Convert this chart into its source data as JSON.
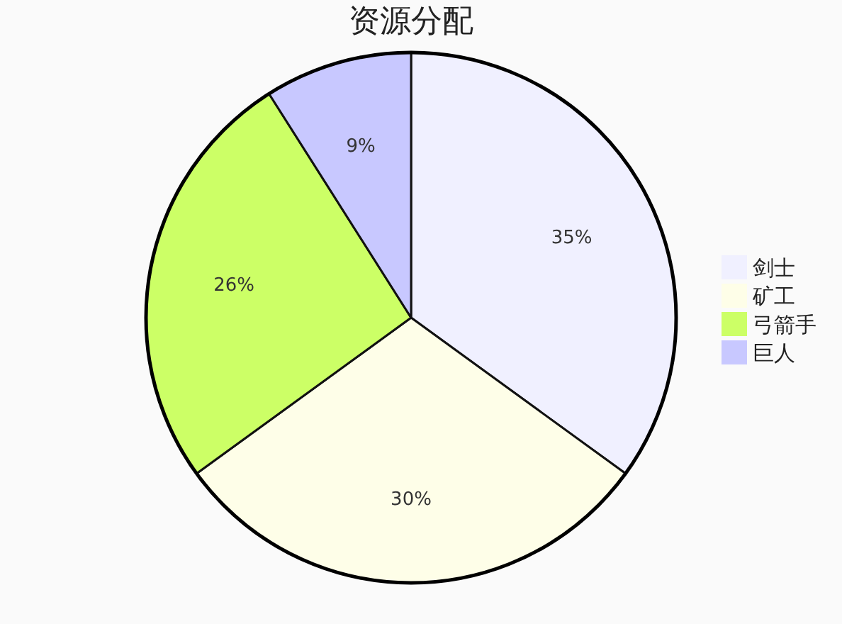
{
  "chart_data": {
    "type": "pie",
    "title": "资源分配",
    "categories": [
      "剑士",
      "矿工",
      "弓箭手",
      "巨人"
    ],
    "values": [
      35,
      30,
      26,
      9
    ],
    "colors": [
      "#f0f0ff",
      "#fefee8",
      "#ccff66",
      "#c8c8ff"
    ],
    "value_labels": [
      "35%",
      "30%",
      "26%",
      "9%"
    ],
    "legend": "right"
  }
}
